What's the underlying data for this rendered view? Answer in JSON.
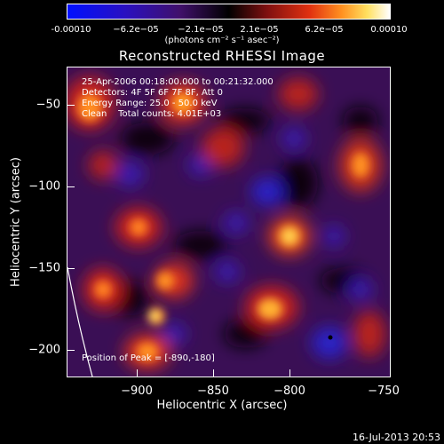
{
  "colorbar": {
    "ticks": [
      "-0.00010",
      "−6.2e−05",
      "−2.1e−05",
      "2.1e−05",
      "6.2e−05",
      "0.00010"
    ],
    "units": "(photons cm⁻² s⁻¹ asec⁻²)"
  },
  "title": "Reconstructed RHESSI Image",
  "info": {
    "time": "25-Apr-2006 00:18:00.000 to 00:21:32.000",
    "detectors": "Detectors: 4F 5F 6F 7F 8F, Att 0",
    "energy": "Energy Range: 25.0 - 50.0 keV",
    "clean": "Clean    Total counts: 4.01E+03",
    "peak": "Position of Peak = [-890,-180]"
  },
  "axes": {
    "xlabel": "Heliocentric X (arcsec)",
    "ylabel": "Heliocentric Y (arcsec)",
    "xticks": [
      "−900",
      "−850",
      "−800",
      "−750"
    ],
    "yticks": [
      "−50",
      "−100",
      "−150",
      "−200"
    ]
  },
  "footer": "16-Jul-2013 20:53"
}
